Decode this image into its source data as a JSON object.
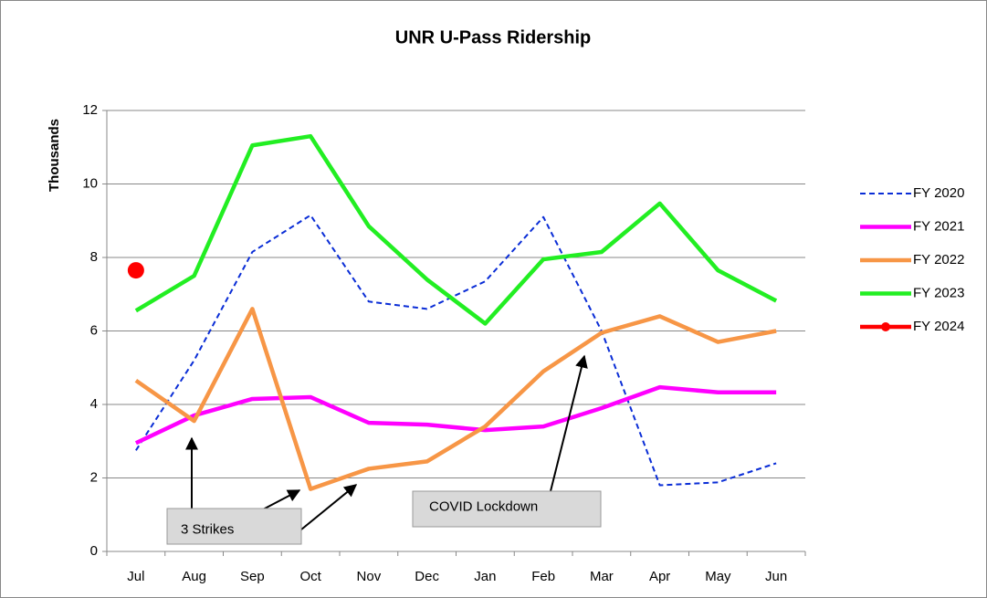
{
  "chart_data": {
    "type": "line",
    "title": "UNR U-Pass Ridership",
    "y_label": "Thousands",
    "categories": [
      "Jul",
      "Aug",
      "Sep",
      "Oct",
      "Nov",
      "Dec",
      "Jan",
      "Feb",
      "Mar",
      "Apr",
      "May",
      "Jun"
    ],
    "ylim": [
      0,
      12
    ],
    "yticks": [
      0,
      2,
      4,
      6,
      8,
      10,
      12
    ],
    "grid": true,
    "legend": "right",
    "series": [
      {
        "name": "FY 2020",
        "color": "#0a2dd6",
        "line_style": "dashed",
        "values": [
          2.75,
          5.2,
          8.15,
          9.15,
          6.8,
          6.6,
          7.35,
          9.1,
          6.0,
          1.8,
          1.88,
          2.4
        ]
      },
      {
        "name": "FY 2021",
        "color": "#ff00ff",
        "values": [
          2.95,
          3.7,
          4.15,
          4.2,
          3.5,
          3.45,
          3.3,
          3.4,
          3.9,
          4.47,
          4.33,
          4.33
        ]
      },
      {
        "name": "FY 2022",
        "color": "#f79646",
        "values": [
          4.65,
          3.55,
          6.6,
          1.7,
          2.25,
          2.45,
          3.4,
          4.9,
          5.95,
          6.4,
          5.7,
          6.0
        ]
      },
      {
        "name": "FY 2023",
        "color": "#22ee22",
        "values": [
          6.55,
          7.5,
          11.05,
          11.3,
          8.85,
          7.4,
          6.2,
          7.95,
          8.15,
          9.47,
          7.65,
          6.82
        ]
      },
      {
        "name": "FY 2024",
        "color": "#ff0000",
        "marker": "circle",
        "values": [
          7.65,
          null,
          null,
          null,
          null,
          null,
          null,
          null,
          null,
          null,
          null,
          null
        ]
      }
    ],
    "annotations": [
      "3 Strikes",
      "COVID Lockdown"
    ]
  }
}
